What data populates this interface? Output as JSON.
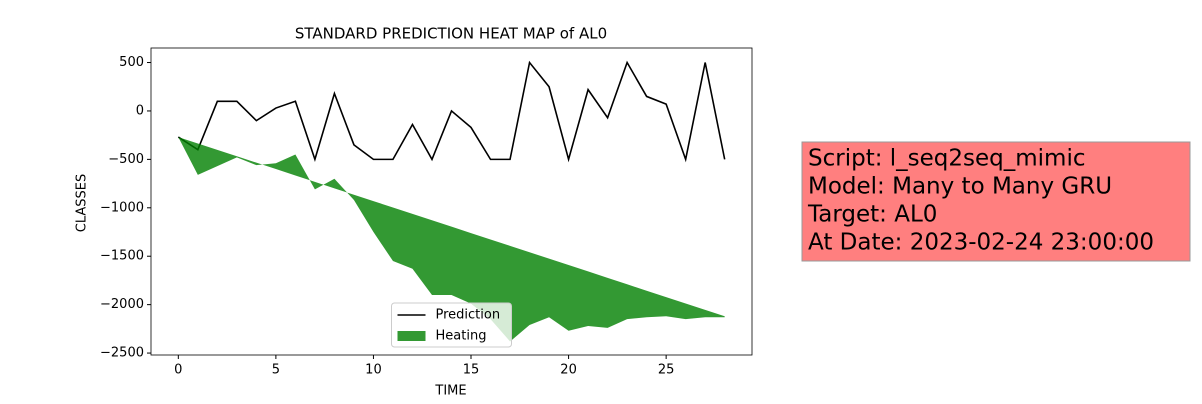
{
  "chart_data": {
    "type": "line",
    "title": "STANDARD PREDICTION HEAT MAP of AL0",
    "xlabel": "TIME",
    "ylabel": "CLASSES",
    "x": [
      0,
      1,
      2,
      3,
      4,
      5,
      6,
      7,
      8,
      9,
      10,
      11,
      12,
      13,
      14,
      15,
      16,
      17,
      18,
      19,
      20,
      21,
      22,
      23,
      24,
      25,
      26,
      27,
      28
    ],
    "series": [
      {
        "name": "Prediction",
        "color": "#000000",
        "kind": "line",
        "values": [
          -270,
          -400,
          100,
          100,
          -100,
          30,
          100,
          -500,
          180,
          -350,
          -500,
          -500,
          -140,
          -500,
          0,
          -170,
          -500,
          -500,
          500,
          250,
          -500,
          220,
          -70,
          500,
          150,
          70,
          -500,
          500,
          -500
        ]
      },
      {
        "name": "Heating",
        "color": "#008000",
        "kind": "fill_between",
        "values": [
          -270,
          -660,
          -570,
          -480,
          -560,
          -540,
          -450,
          -810,
          -700,
          -920,
          -1250,
          -1550,
          -1630,
          -1900,
          -1900,
          -1990,
          -2150,
          -2380,
          -2210,
          -2130,
          -2270,
          -2220,
          -2240,
          -2150,
          -2130,
          -2120,
          -2150,
          -2130,
          -2130
        ],
        "baseline": [
          -270,
          -336,
          -402,
          -468,
          -534,
          -600,
          -666,
          -732,
          -799,
          -865,
          -931,
          -997,
          -1063,
          -1129,
          -1195,
          -1261,
          -1327,
          -1393,
          -1459,
          -1525,
          -1591,
          -1657,
          -1724,
          -1790,
          -1856,
          -1922,
          -1988,
          -2054,
          -2120
        ]
      }
    ],
    "xlim": [
      -1.4,
      29.4
    ],
    "ylim": [
      -2520,
      650
    ],
    "xticks": [
      0,
      5,
      10,
      15,
      20,
      25
    ],
    "yticks": [
      500,
      0,
      {
        "value": -500,
        "label": "−500"
      },
      {
        "value": -1000,
        "label": "−1000"
      },
      {
        "value": -1500,
        "label": "−1500"
      },
      {
        "value": -2000,
        "label": "−2000"
      },
      {
        "value": -2500,
        "label": "−2500"
      }
    ],
    "legend": "lower center",
    "annotation": {
      "lines": [
        "Script: l_seq2seq_mimic",
        "Model: Many to Many GRU",
        "Target: AL0",
        "At Date: 2023-02-24 23:00:00"
      ],
      "color": "#ff7f7f"
    }
  }
}
